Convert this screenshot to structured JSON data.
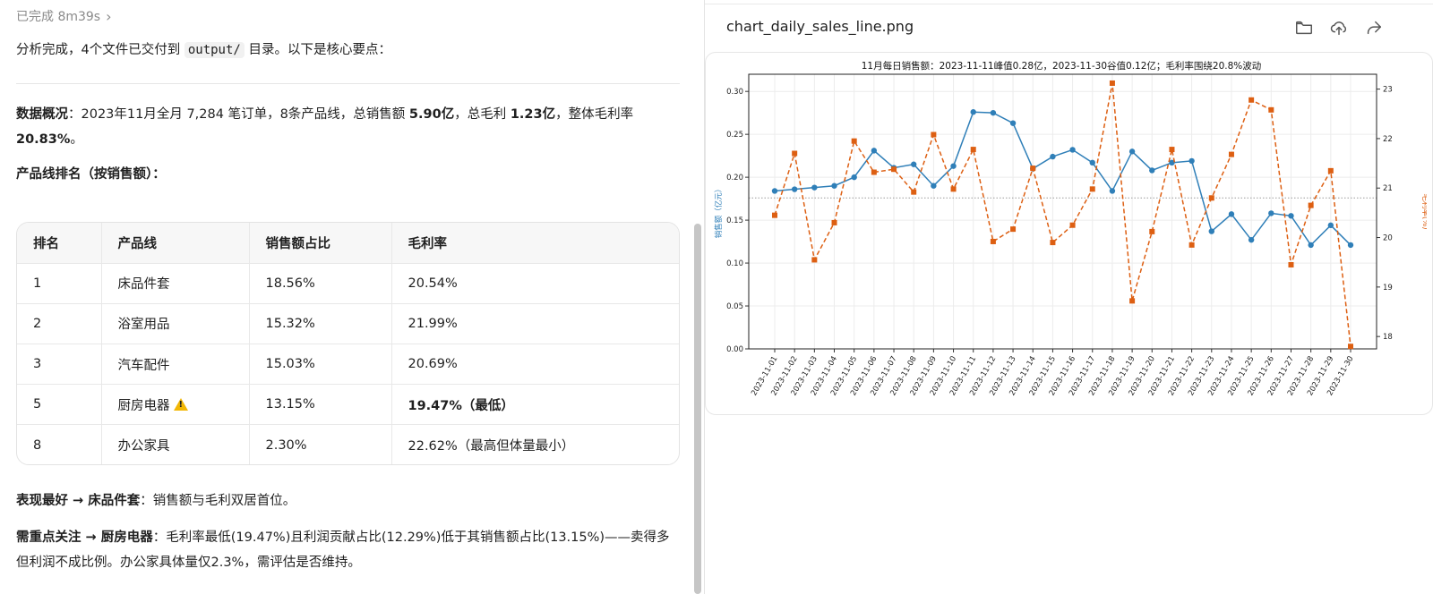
{
  "left": {
    "status": "已完成 8m39s",
    "intro": {
      "before": "分析完成，4个文件已交付到 ",
      "code": "output/",
      "after": " 目录。以下是核心要点："
    },
    "overview": {
      "label": "数据概况",
      "t1": "：2023年11月全月 7,284 笔订单，8条产品线，总销售额 ",
      "b1": "5.90亿",
      "t2": "，总毛利 ",
      "b2": "1.23亿",
      "t3": "，整体毛利率 ",
      "b3": "20.83%",
      "t4": "。"
    },
    "ranking_title": "产品线排名（按销售额）：",
    "table": {
      "headers": [
        "排名",
        "产品线",
        "销售额占比",
        "毛利率"
      ],
      "rows": [
        {
          "rank": "1",
          "line": "床品件套",
          "share": "18.56%",
          "margin": "20.54%"
        },
        {
          "rank": "2",
          "line": "浴室用品",
          "share": "15.32%",
          "margin": "21.99%"
        },
        {
          "rank": "3",
          "line": "汽车配件",
          "share": "15.03%",
          "margin": "20.69%"
        },
        {
          "rank": "5",
          "line": "厨房电器",
          "share": "13.15%",
          "margin": "19.47%（最低）"
        },
        {
          "rank": "8",
          "line": "办公家具",
          "share": "2.30%",
          "margin": "22.62%（最高但体量最小）"
        }
      ]
    },
    "best": {
      "label": "表现最好 → 床品件套",
      "text": "：销售额与毛利双居首位。"
    },
    "focus": {
      "label": "需重点关注 → 厨房电器",
      "text": "：毛利率最低(19.47%)且利润贡献占比(12.29%)低于其销售额占比(13.15%)——卖得多但利润不成比例。办公家具体量仅2.3%，需评估是否维持。"
    }
  },
  "right": {
    "file_name": "chart_daily_sales_line.png",
    "icons": [
      "folder-icon",
      "upload-icon",
      "share-icon"
    ]
  },
  "chart_data": {
    "type": "line",
    "title": "11月每日销售额：2023-11-11峰值0.28亿，2023-11-30谷值0.12亿；毛利率围绕20.8%波动",
    "ylabel": "销售额（亿元）",
    "y2label": "毛利率(%)",
    "ylim": [
      0,
      0.32
    ],
    "y2lim": [
      17.75,
      23.3
    ],
    "yticks": [
      "0.00",
      "0.05",
      "0.10",
      "0.15",
      "0.20",
      "0.25",
      "0.30"
    ],
    "y2ticks": [
      "18",
      "19",
      "20",
      "21",
      "22",
      "23"
    ],
    "reference_line": 20.8,
    "grid": true,
    "x": [
      "2023-11-01",
      "2023-11-02",
      "2023-11-03",
      "2023-11-04",
      "2023-11-05",
      "2023-11-06",
      "2023-11-07",
      "2023-11-08",
      "2023-11-09",
      "2023-11-10",
      "2023-11-11",
      "2023-11-12",
      "2023-11-13",
      "2023-11-14",
      "2023-11-15",
      "2023-11-16",
      "2023-11-17",
      "2023-11-18",
      "2023-11-19",
      "2023-11-20",
      "2023-11-21",
      "2023-11-22",
      "2023-11-23",
      "2023-11-24",
      "2023-11-25",
      "2023-11-26",
      "2023-11-27",
      "2023-11-28",
      "2023-11-29",
      "2023-11-30"
    ],
    "series": [
      {
        "axis": "left",
        "color": "#2f7fb8",
        "marker": "circle",
        "style": "solid",
        "values": [
          0.184,
          0.186,
          0.188,
          0.19,
          0.2,
          0.231,
          0.211,
          0.215,
          0.19,
          0.213,
          0.276,
          0.275,
          0.263,
          0.21,
          0.224,
          0.232,
          0.217,
          0.184,
          0.23,
          0.208,
          0.217,
          0.219,
          0.137,
          0.157,
          0.127,
          0.158,
          0.155,
          0.121,
          0.144,
          0.121
        ]
      },
      {
        "axis": "right",
        "color": "#dd5f12",
        "marker": "square",
        "style": "dashed",
        "values": [
          20.45,
          21.7,
          19.55,
          20.3,
          21.95,
          21.32,
          21.38,
          20.92,
          22.08,
          20.98,
          21.78,
          19.92,
          20.17,
          21.4,
          19.9,
          20.25,
          20.98,
          23.12,
          18.72,
          20.12,
          21.78,
          19.85,
          20.8,
          21.68,
          22.78,
          22.58,
          19.45,
          20.65,
          21.35,
          17.8
        ]
      }
    ]
  }
}
